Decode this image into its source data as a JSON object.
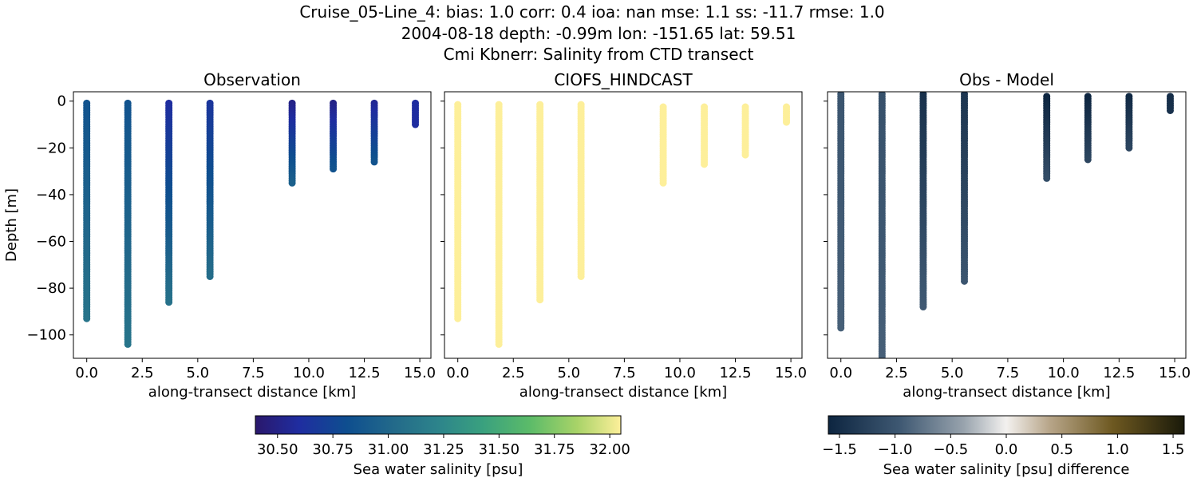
{
  "title": {
    "line1": "Cruise_05-Line_4: bias: 1.0  corr: 0.4  ioa: nan  mse: 1.1  ss: -11.7  rmse: 1.0",
    "line2": "2004-08-18 depth: -0.99m lon: -151.65 lat: 59.51",
    "line3": "Cmi Kbnerr: Salinity from CTD transect"
  },
  "chart_data": [
    {
      "type": "scatter",
      "title": "Observation",
      "xlabel": "along-transect distance [km]",
      "ylabel": "Depth [m]",
      "xlim": [
        -0.6,
        15.5
      ],
      "ylim": [
        -110,
        4
      ],
      "xticks": [
        "0.0",
        "2.5",
        "5.0",
        "7.5",
        "10.0",
        "12.5",
        "15.0"
      ],
      "yticks": [
        "0",
        "−20",
        "−40",
        "−60",
        "−80",
        "−100"
      ],
      "ytick_values": [
        0,
        -20,
        -40,
        -60,
        -80,
        -100
      ],
      "colormap": "haline",
      "profiles": [
        {
          "x": 0.0,
          "top": -0.9,
          "bottom": -93,
          "salinity_top": 30.85,
          "salinity_bottom": 31.1
        },
        {
          "x": 1.85,
          "top": -0.9,
          "bottom": -104,
          "salinity_top": 30.85,
          "salinity_bottom": 31.1
        },
        {
          "x": 3.7,
          "top": -0.9,
          "bottom": -86,
          "salinity_top": 30.6,
          "salinity_bottom": 31.08
        },
        {
          "x": 5.55,
          "top": -0.9,
          "bottom": -75,
          "salinity_top": 30.65,
          "salinity_bottom": 31.05
        },
        {
          "x": 9.25,
          "top": -0.9,
          "bottom": -35,
          "salinity_top": 30.5,
          "salinity_bottom": 30.95
        },
        {
          "x": 11.1,
          "top": -0.9,
          "bottom": -29,
          "salinity_top": 30.5,
          "salinity_bottom": 30.85
        },
        {
          "x": 12.95,
          "top": -0.9,
          "bottom": -26,
          "salinity_top": 30.55,
          "salinity_bottom": 30.85
        },
        {
          "x": 14.8,
          "top": -0.9,
          "bottom": -10,
          "salinity_top": 30.6,
          "salinity_bottom": 30.6
        }
      ]
    },
    {
      "type": "scatter",
      "title": "CIOFS_HINDCAST",
      "xlabel": "along-transect distance [km]",
      "xlim": [
        -0.6,
        15.5
      ],
      "ylim": [
        -110,
        4
      ],
      "xticks": [
        "0.0",
        "2.5",
        "5.0",
        "7.5",
        "10.0",
        "12.5",
        "15.0"
      ],
      "colormap": "haline",
      "profiles": [
        {
          "x": 0.0,
          "top": -1.5,
          "bottom": -93,
          "salinity_top": 32.05,
          "salinity_bottom": 32.05
        },
        {
          "x": 1.85,
          "top": -1.5,
          "bottom": -104,
          "salinity_top": 32.05,
          "salinity_bottom": 32.05
        },
        {
          "x": 3.7,
          "top": -1.5,
          "bottom": -85,
          "salinity_top": 32.05,
          "salinity_bottom": 32.05
        },
        {
          "x": 5.55,
          "top": -1.5,
          "bottom": -75,
          "salinity_top": 32.05,
          "salinity_bottom": 32.05
        },
        {
          "x": 9.25,
          "top": -2.5,
          "bottom": -35,
          "salinity_top": 32.05,
          "salinity_bottom": 32.05
        },
        {
          "x": 11.1,
          "top": -2.5,
          "bottom": -27,
          "salinity_top": 32.05,
          "salinity_bottom": 32.05
        },
        {
          "x": 12.95,
          "top": -2.5,
          "bottom": -23,
          "salinity_top": 32.05,
          "salinity_bottom": 32.05
        },
        {
          "x": 14.8,
          "top": -2.5,
          "bottom": -9,
          "salinity_top": 32.05,
          "salinity_bottom": 32.05
        }
      ]
    },
    {
      "type": "scatter",
      "title": "Obs - Model",
      "xlabel": "along-transect distance [km]",
      "xlim": [
        -0.6,
        15.5
      ],
      "ylim": [
        -110,
        4
      ],
      "xticks": [
        "0.0",
        "2.5",
        "5.0",
        "7.5",
        "10.0",
        "12.5",
        "15.0"
      ],
      "colormap": "diff",
      "profiles": [
        {
          "x": 0.0,
          "top": 3,
          "bottom": -97,
          "diff_top": -1.0,
          "diff_bottom": -0.9
        },
        {
          "x": 1.85,
          "top": 3,
          "bottom": -110,
          "diff_top": -1.05,
          "diff_bottom": -0.9
        },
        {
          "x": 3.7,
          "top": 3,
          "bottom": -88,
          "diff_top": -1.45,
          "diff_bottom": -0.95
        },
        {
          "x": 5.55,
          "top": 3,
          "bottom": -77,
          "diff_top": -1.4,
          "diff_bottom": -1.0
        },
        {
          "x": 9.25,
          "top": 2,
          "bottom": -33,
          "diff_top": -1.6,
          "diff_bottom": -1.1
        },
        {
          "x": 11.1,
          "top": 2,
          "bottom": -25,
          "diff_top": -1.6,
          "diff_bottom": -1.2
        },
        {
          "x": 12.95,
          "top": 2,
          "bottom": -20,
          "diff_top": -1.55,
          "diff_bottom": -1.2
        },
        {
          "x": 14.8,
          "top": 2,
          "bottom": -4,
          "diff_top": -1.5,
          "diff_bottom": -1.45
        }
      ]
    }
  ],
  "colorbars": {
    "salinity": {
      "label": "Sea water salinity [psu]",
      "range": [
        30.4,
        32.05
      ],
      "ticks": [
        "30.50",
        "30.75",
        "31.00",
        "31.25",
        "31.50",
        "31.75",
        "32.00"
      ],
      "tick_values": [
        30.5,
        30.75,
        31.0,
        31.25,
        31.5,
        31.75,
        32.0
      ]
    },
    "difference": {
      "label": "Sea water salinity [psu] difference",
      "range": [
        -1.6,
        1.6
      ],
      "ticks": [
        "−1.5",
        "−1.0",
        "−0.5",
        "0.0",
        "0.5",
        "1.0",
        "1.5"
      ],
      "tick_values": [
        -1.5,
        -1.0,
        -0.5,
        0.0,
        0.5,
        1.0,
        1.5
      ]
    }
  }
}
